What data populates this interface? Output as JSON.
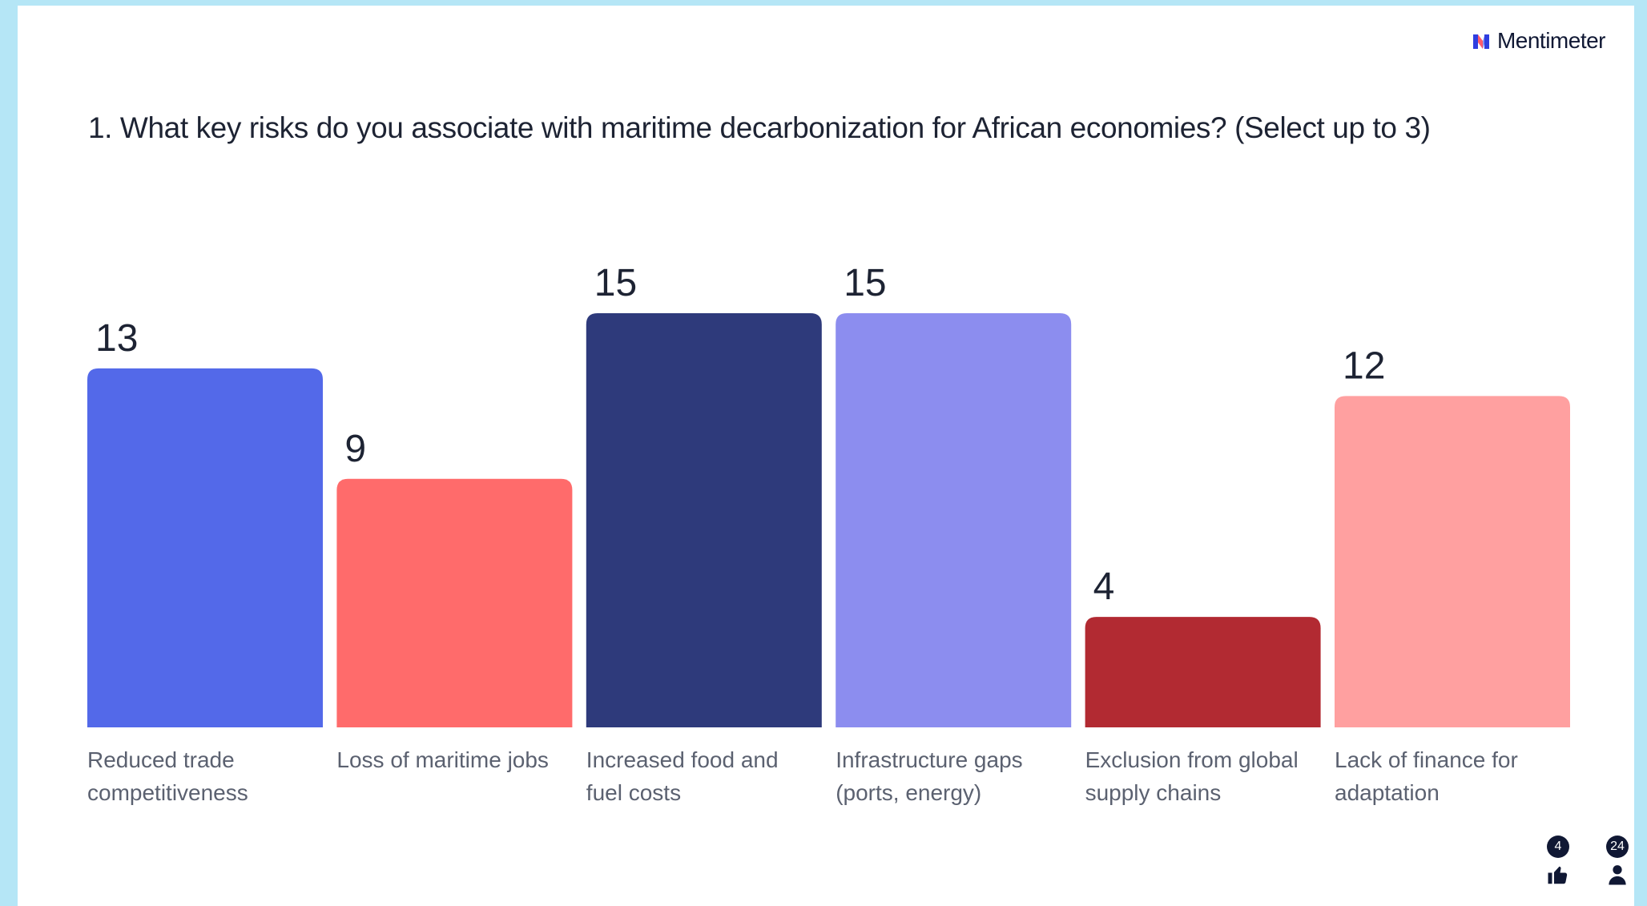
{
  "brand": {
    "name": "Mentimeter",
    "icon": "mentimeter-logo-icon"
  },
  "question": "1. What key risks do you associate with maritime decarbonization for African economies? (Select up to 3)",
  "chart_data": {
    "type": "bar",
    "categories": [
      [
        "Reduced trade",
        "competitiveness"
      ],
      [
        "Loss of maritime jobs"
      ],
      [
        "Increased food and",
        "fuel costs"
      ],
      [
        "Infrastructure gaps",
        "(ports, energy)"
      ],
      [
        "Exclusion from global",
        "supply chains"
      ],
      [
        "Lack of finance for",
        "adaptation"
      ]
    ],
    "values": [
      13,
      9,
      15,
      15,
      4,
      12
    ],
    "colors": [
      "#5369e9",
      "#ff6b6b",
      "#2e3a7b",
      "#8c8def",
      "#b22a32",
      "#ffa0a0"
    ],
    "title": "",
    "xlabel": "",
    "ylabel": "",
    "ylim": [
      0,
      15
    ]
  },
  "footer": {
    "reactions": {
      "icon": "thumbs-up-icon",
      "count": "4"
    },
    "participants": {
      "icon": "person-icon",
      "count": "24"
    }
  }
}
